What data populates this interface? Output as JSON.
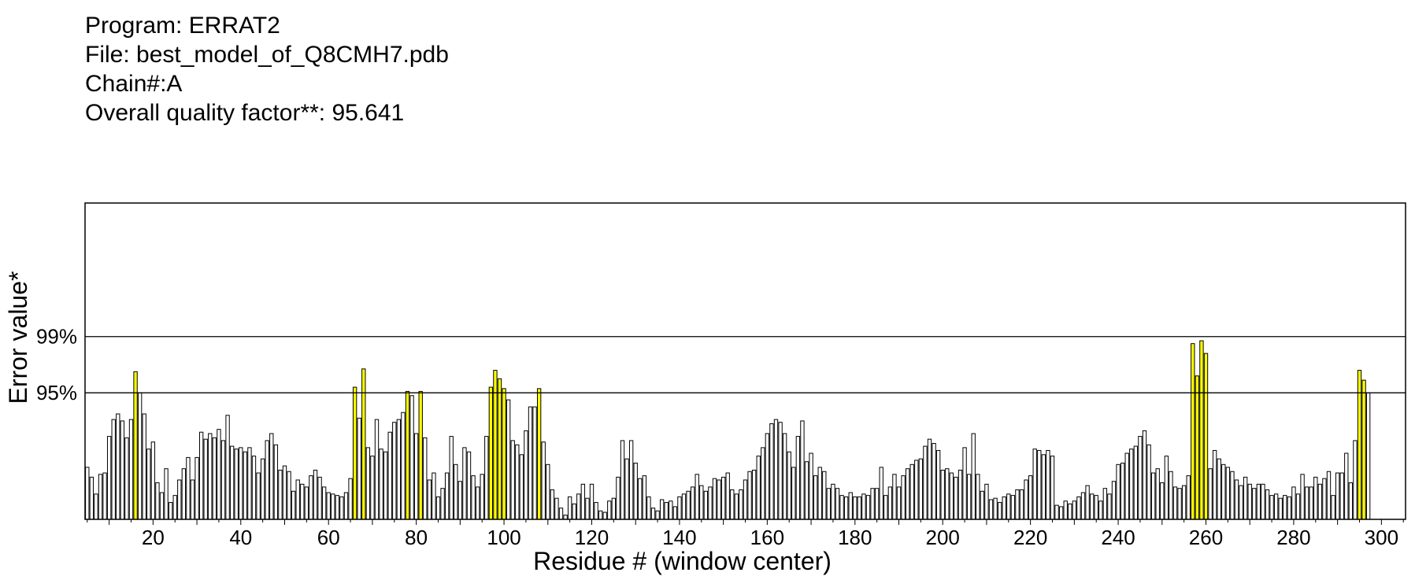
{
  "header": {
    "program": "Program: ERRAT2",
    "file": "File: best_model_of_Q8CMH7.pdb",
    "chain": "Chain#:A",
    "quality": "Overall quality factor**: 95.641"
  },
  "colors": {
    "normal_bar": "#ffffff",
    "warning_bar": "#ffff00",
    "bar_stroke": "#000000"
  },
  "chart_data": {
    "type": "bar",
    "xlabel": "Residue # (window center)",
    "ylabel": "Error value*",
    "xlim": [
      4.5,
      305.5
    ],
    "ylim": [
      86,
      108.5
    ],
    "x_ticks": [
      20,
      40,
      60,
      80,
      100,
      120,
      140,
      160,
      180,
      200,
      220,
      240,
      260,
      280,
      300
    ],
    "reference_lines": [
      {
        "label": "99%",
        "value": 99
      },
      {
        "label": "95%",
        "value": 95
      }
    ],
    "threshold_warning": 95,
    "x_start": 5,
    "values": [
      89.7,
      89.0,
      87.8,
      89.2,
      89.3,
      91.9,
      93.1,
      93.5,
      93.0,
      91.8,
      93.1,
      96.5,
      95.0,
      93.5,
      91.0,
      91.5,
      88.6,
      87.9,
      89.6,
      87.2,
      87.7,
      88.8,
      89.6,
      90.4,
      88.8,
      90.4,
      92.2,
      91.7,
      92.1,
      91.8,
      92.4,
      91.6,
      93.4,
      91.2,
      91.0,
      91.1,
      90.8,
      91.1,
      90.5,
      89.3,
      90.3,
      91.6,
      92.1,
      91.3,
      89.5,
      89.8,
      89.4,
      88.0,
      88.8,
      88.5,
      88.3,
      89.1,
      89.5,
      89.0,
      88.3,
      87.9,
      87.8,
      87.7,
      87.6,
      87.9,
      88.9,
      95.4,
      93.2,
      96.7,
      91.1,
      90.5,
      93.1,
      91.0,
      90.8,
      92.2,
      92.9,
      93.1,
      93.6,
      95.1,
      94.8,
      92.1,
      95.1,
      91.8,
      88.8,
      89.3,
      87.6,
      88.2,
      89.3,
      91.9,
      89.9,
      88.7,
      91.1,
      90.8,
      89.1,
      88.3,
      89.2,
      91.9,
      95.4,
      96.6,
      96.0,
      95.3,
      94.5,
      91.6,
      91.3,
      90.6,
      92.3,
      94.0,
      94.0,
      95.3,
      91.5,
      89.9,
      88.1,
      87.5,
      86.8,
      86.3,
      87.6,
      87.1,
      87.8,
      88.5,
      87.5,
      88.5,
      87.2,
      86.6,
      86.5,
      87.3,
      87.5,
      89.0,
      91.6,
      90.3,
      91.6,
      90.0,
      88.9,
      89.1,
      87.6,
      86.8,
      86.6,
      87.4,
      87.2,
      87.3,
      86.9,
      87.6,
      87.8,
      88.0,
      88.3,
      89.2,
      88.4,
      88.0,
      88.3,
      88.9,
      88.8,
      89.0,
      89.3,
      88.1,
      87.8,
      88.1,
      88.8,
      89.4,
      89.5,
      90.5,
      91.1,
      92.1,
      92.8,
      93.1,
      92.9,
      92.1,
      90.8,
      89.7,
      91.9,
      93.0,
      90.1,
      90.7,
      89.1,
      89.7,
      89.4,
      88.2,
      88.5,
      88.2,
      87.7,
      87.6,
      87.9,
      87.6,
      87.6,
      87.8,
      87.7,
      88.2,
      88.2,
      89.7,
      87.7,
      88.3,
      89.2,
      88.3,
      89.1,
      89.6,
      89.9,
      90.2,
      90.3,
      91.2,
      91.7,
      91.4,
      90.9,
      89.5,
      89.6,
      89.3,
      89.0,
      89.5,
      91.1,
      89.2,
      92.1,
      89.2,
      88.0,
      88.5,
      87.4,
      87.5,
      87.2,
      87.6,
      87.8,
      87.7,
      88.1,
      88.1,
      88.8,
      89.1,
      91.0,
      90.9,
      90.6,
      90.9,
      90.5,
      87.0,
      86.9,
      87.3,
      87.1,
      87.3,
      87.6,
      87.9,
      88.4,
      87.8,
      87.7,
      87.3,
      88.2,
      87.8,
      88.7,
      89.9,
      90.0,
      90.7,
      91.0,
      91.2,
      91.9,
      92.3,
      91.3,
      89.3,
      89.6,
      88.6,
      90.5,
      89.4,
      88.3,
      88.2,
      88.4,
      89.1,
      98.5,
      96.2,
      98.7,
      97.8,
      89.6,
      90.9,
      90.3,
      89.9,
      89.7,
      89.4,
      88.8,
      88.4,
      89.0,
      88.5,
      88.2,
      88.5,
      88.5,
      88.1,
      87.7,
      87.8,
      87.5,
      87.7,
      87.6,
      88.3,
      87.8,
      89.2,
      88.3,
      88.3,
      89.0,
      88.5,
      88.9,
      89.4,
      87.7,
      89.3,
      89.3,
      90.7,
      88.6,
      91.6,
      96.6,
      95.9,
      95.0
    ]
  }
}
